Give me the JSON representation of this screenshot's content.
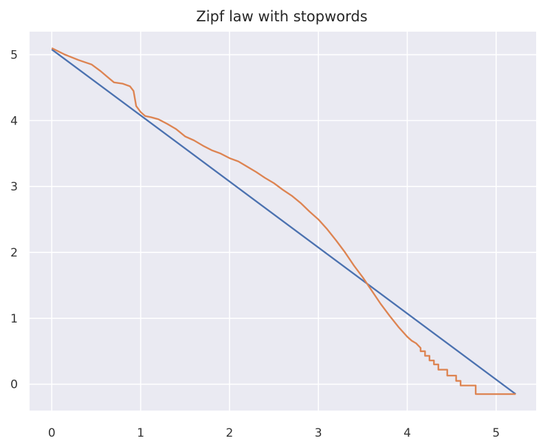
{
  "chart_data": {
    "type": "line",
    "title": "Zipf law with stopwords",
    "xlabel": "",
    "ylabel": "",
    "xlim": [
      -0.25,
      5.45
    ],
    "ylim": [
      -0.4,
      5.35
    ],
    "x_ticks": [
      0,
      1,
      2,
      3,
      4,
      5
    ],
    "y_ticks": [
      0,
      1,
      2,
      3,
      4,
      5
    ],
    "grid": true,
    "colors": {
      "background": "#EAEAF2",
      "grid": "#FFFFFF",
      "fit_line": "#4C72B0",
      "observed_line": "#DD8452"
    },
    "series": [
      {
        "x": [
          0,
          5.22
        ],
        "y": [
          5.08,
          -0.15
        ]
      },
      {
        "x": [
          0,
          0.15,
          0.3,
          0.45,
          0.55,
          0.62,
          0.7,
          0.8,
          0.88,
          0.92,
          0.95,
          1.0,
          1.05,
          1.12,
          1.2,
          1.3,
          1.4,
          1.5,
          1.6,
          1.7,
          1.8,
          1.9,
          2.0,
          2.1,
          2.2,
          2.3,
          2.4,
          2.5,
          2.6,
          2.7,
          2.8,
          2.9,
          3.0,
          3.1,
          3.2,
          3.3,
          3.4,
          3.5,
          3.6,
          3.7,
          3.8,
          3.9,
          4.0,
          4.05,
          4.1,
          4.15,
          4.15,
          4.2,
          4.2,
          4.25,
          4.25,
          4.3,
          4.3,
          4.35,
          4.35,
          4.45,
          4.45,
          4.55,
          4.55,
          4.6,
          4.6,
          4.77,
          4.77,
          5.0,
          5.22
        ],
        "y": [
          5.1,
          5.0,
          4.92,
          4.85,
          4.75,
          4.67,
          4.58,
          4.56,
          4.52,
          4.45,
          4.22,
          4.13,
          4.07,
          4.05,
          4.02,
          3.95,
          3.87,
          3.76,
          3.7,
          3.62,
          3.55,
          3.5,
          3.43,
          3.38,
          3.3,
          3.22,
          3.13,
          3.05,
          2.95,
          2.86,
          2.75,
          2.62,
          2.5,
          2.35,
          2.18,
          2.0,
          1.8,
          1.62,
          1.42,
          1.22,
          1.04,
          0.87,
          0.72,
          0.66,
          0.62,
          0.55,
          0.5,
          0.5,
          0.43,
          0.43,
          0.36,
          0.36,
          0.3,
          0.3,
          0.22,
          0.22,
          0.13,
          0.13,
          0.05,
          0.05,
          -0.02,
          -0.02,
          -0.15,
          -0.15,
          -0.15
        ]
      }
    ]
  }
}
